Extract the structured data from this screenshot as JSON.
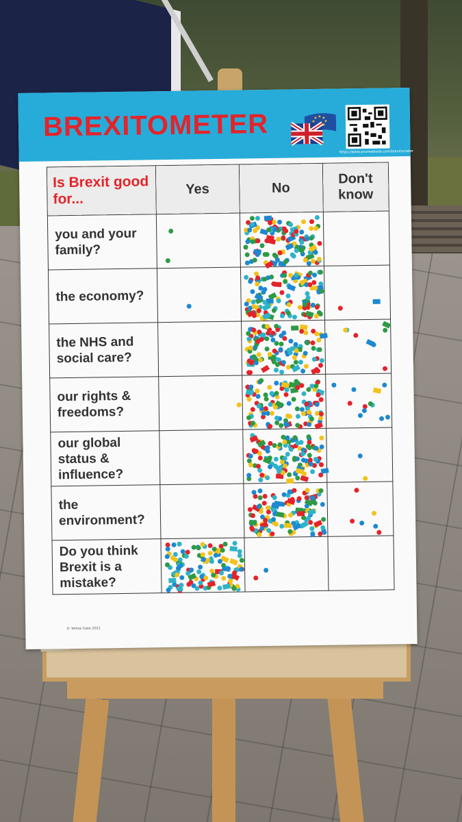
{
  "poster": {
    "title": "BREXITOMETER",
    "qr_caption": "https://www.yourwebsite.com/brexitometer",
    "credit": "© Yellow Gate 2021"
  },
  "table": {
    "question_header": "Is Brexit good for...",
    "columns": [
      "Yes",
      "No",
      "Don't know"
    ],
    "rows": [
      {
        "label": "you and your family?",
        "votes": {
          "Yes": 2,
          "No": 120,
          "Don't know": 0
        }
      },
      {
        "label": "the economy?",
        "votes": {
          "Yes": 1,
          "No": 120,
          "Don't know": 2
        }
      },
      {
        "label": "the NHS and social care?",
        "votes": {
          "Yes": 0,
          "No": 120,
          "Don't know": 8
        }
      },
      {
        "label": "our rights & freedoms?",
        "votes": {
          "Yes": 1,
          "No": 120,
          "Don't know": 12
        }
      },
      {
        "label": "our global status & influence?",
        "votes": {
          "Yes": 0,
          "No": 120,
          "Don't know": 2
        }
      },
      {
        "label": "the environment?",
        "votes": {
          "Yes": 0,
          "No": 120,
          "Don't know": 6
        }
      },
      {
        "label": "Do you think Brexit is a mistake?",
        "votes": {
          "Yes": 120,
          "No": 2,
          "Don't know": 0
        }
      }
    ]
  },
  "colors": {
    "header_blue": "#27acd9",
    "title_red": "#e4232a",
    "sticker_palette": [
      "#e4232a",
      "#1e88d0",
      "#2e9a46",
      "#f2c21b",
      "#2fb3c9"
    ]
  }
}
